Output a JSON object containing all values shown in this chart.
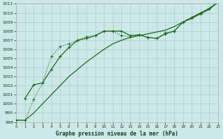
{
  "title": "Graphe pression niveau de la mer (hPa)",
  "bg_color": "#cce8e8",
  "grid_color": "#aacccc",
  "line_color": "#1a6b1a",
  "x_min": 0,
  "x_max": 23,
  "y_min": 998,
  "y_max": 1011,
  "line1_x": [
    0,
    1,
    2,
    3,
    4,
    5,
    6,
    7,
    8,
    9,
    10,
    11,
    12,
    13,
    14,
    15,
    16,
    17,
    18,
    19,
    20,
    21,
    22,
    23
  ],
  "line1_y": [
    998.2,
    998.2,
    1000.5,
    1002.3,
    1005.2,
    1006.3,
    1006.6,
    1007.0,
    1007.4,
    1007.5,
    1008.0,
    1008.0,
    1007.5,
    1007.4,
    1007.6,
    1007.3,
    1007.2,
    1007.8,
    1008.0,
    1009.0,
    1009.5,
    1010.0,
    1010.5,
    1011.2
  ],
  "line2_x": [
    1,
    2,
    3,
    4,
    5,
    6,
    7,
    8,
    9,
    10,
    11,
    12,
    13,
    14,
    15,
    16,
    17,
    18,
    19,
    20,
    21,
    22,
    23
  ],
  "line2_y": [
    1000.6,
    1002.1,
    1002.3,
    1003.8,
    1005.2,
    1006.2,
    1007.0,
    1007.2,
    1007.5,
    1008.0,
    1008.0,
    1008.0,
    1007.5,
    1007.6,
    1007.3,
    1007.2,
    1007.7,
    1008.0,
    1009.0,
    1009.4,
    1009.9,
    1010.4,
    1011.2
  ],
  "line3_x": [
    0,
    1,
    2,
    3,
    4,
    5,
    6,
    7,
    8,
    9,
    10,
    11,
    12,
    13,
    14,
    15,
    16,
    17,
    18,
    19,
    20,
    21,
    22,
    23
  ],
  "line3_y": [
    998.2,
    998.2,
    999.0,
    1000.0,
    1001.0,
    1002.0,
    1003.0,
    1003.8,
    1004.6,
    1005.3,
    1006.0,
    1006.6,
    1007.0,
    1007.3,
    1007.5,
    1007.7,
    1007.9,
    1008.1,
    1008.5,
    1009.0,
    1009.5,
    1010.0,
    1010.5,
    1011.2
  ],
  "x_ticks": [
    0,
    1,
    2,
    3,
    4,
    5,
    6,
    7,
    8,
    9,
    10,
    11,
    12,
    13,
    14,
    15,
    16,
    17,
    18,
    19,
    20,
    21,
    22,
    23
  ],
  "y_ticks": [
    998,
    999,
    1000,
    1001,
    1002,
    1003,
    1004,
    1005,
    1006,
    1007,
    1008,
    1009,
    1010,
    1011
  ]
}
